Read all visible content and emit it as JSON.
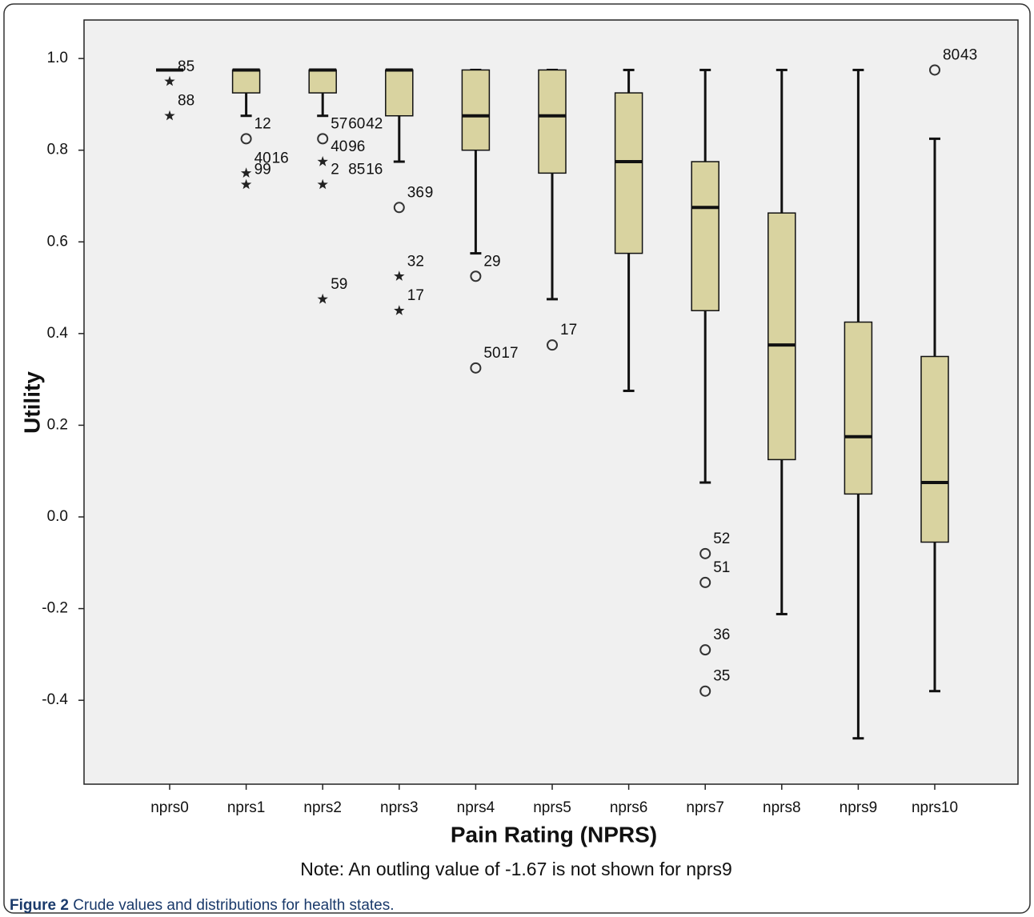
{
  "chart_data": {
    "type": "box",
    "x_label": "Pain Rating (NPRS)",
    "y_label": "Utility",
    "note": "Note: An outling value of -1.67 is not shown for nprs9",
    "caption_label": "Figure 2",
    "caption_text": "Crude values and distributions for health states.",
    "color": "#d9d3a0",
    "categories": [
      "nprs0",
      "nprs1",
      "nprs2",
      "nprs3",
      "nprs4",
      "nprs5",
      "nprs6",
      "nprs7",
      "nprs8",
      "nprs9",
      "nprs10"
    ],
    "boxes": [
      {
        "q1": 0.975,
        "median": 0.975,
        "q3": 0.975,
        "whisker_low": 0.975,
        "whisker_high": 0.975,
        "outliers": [
          {
            "value": 0.95,
            "marker": "star",
            "labels": [
              "85"
            ]
          },
          {
            "value": 0.875,
            "marker": "star",
            "labels": [
              "88"
            ]
          }
        ]
      },
      {
        "q1": 0.925,
        "median": 0.975,
        "q3": 0.975,
        "whisker_low": 0.875,
        "whisker_high": 0.975,
        "outliers": [
          {
            "value": 0.825,
            "marker": "circle",
            "labels": [
              "12"
            ]
          },
          {
            "value": 0.75,
            "marker": "star",
            "labels": [
              "40",
              "16"
            ]
          },
          {
            "value": 0.725,
            "marker": "star",
            "labels": [
              "99"
            ]
          }
        ]
      },
      {
        "q1": 0.925,
        "median": 0.975,
        "q3": 0.975,
        "whisker_low": 0.875,
        "whisker_high": 0.975,
        "outliers": [
          {
            "value": 0.825,
            "marker": "circle",
            "labels": [
              "57",
              "60",
              "42"
            ]
          },
          {
            "value": 0.775,
            "marker": "star",
            "labels": [
              "40",
              "96"
            ]
          },
          {
            "value": 0.725,
            "marker": "star",
            "labels": [
              "2",
              "85",
              "16"
            ]
          },
          {
            "value": 0.475,
            "marker": "star",
            "labels": [
              "59"
            ]
          }
        ]
      },
      {
        "q1": 0.875,
        "median": 0.975,
        "q3": 0.975,
        "whisker_low": 0.775,
        "whisker_high": 0.975,
        "outliers": [
          {
            "value": 0.675,
            "marker": "circle",
            "labels": [
              "36",
              "9"
            ]
          },
          {
            "value": 0.525,
            "marker": "star",
            "labels": [
              "32"
            ]
          },
          {
            "value": 0.45,
            "marker": "star",
            "labels": [
              "17"
            ]
          }
        ]
      },
      {
        "q1": 0.8,
        "median": 0.875,
        "q3": 0.975,
        "whisker_low": 0.575,
        "whisker_high": 0.975,
        "outliers": [
          {
            "value": 0.525,
            "marker": "circle",
            "labels": [
              "29"
            ]
          },
          {
            "value": 0.325,
            "marker": "circle",
            "labels": [
              "50",
              "17"
            ]
          }
        ]
      },
      {
        "q1": 0.75,
        "median": 0.875,
        "q3": 0.975,
        "whisker_low": 0.475,
        "whisker_high": 0.975,
        "outliers": [
          {
            "value": 0.375,
            "marker": "circle",
            "labels": [
              "17"
            ]
          }
        ]
      },
      {
        "q1": 0.575,
        "median": 0.775,
        "q3": 0.925,
        "whisker_low": 0.275,
        "whisker_high": 0.975,
        "outliers": []
      },
      {
        "q1": 0.45,
        "median": 0.675,
        "q3": 0.775,
        "whisker_low": 0.075,
        "whisker_high": 0.975,
        "outliers": [
          {
            "value": -0.08,
            "marker": "circle",
            "labels": [
              "52"
            ]
          },
          {
            "value": -0.143,
            "marker": "circle",
            "labels": [
              "51"
            ]
          },
          {
            "value": -0.29,
            "marker": "circle",
            "labels": [
              "36"
            ]
          },
          {
            "value": -0.38,
            "marker": "circle",
            "labels": [
              "35"
            ]
          }
        ]
      },
      {
        "q1": 0.125,
        "median": 0.375,
        "q3": 0.663,
        "whisker_low": -0.212,
        "whisker_high": 0.975,
        "outliers": []
      },
      {
        "q1": 0.05,
        "median": 0.175,
        "q3": 0.425,
        "whisker_low": -0.483,
        "whisker_high": 0.975,
        "outliers": []
      },
      {
        "q1": -0.055,
        "median": 0.075,
        "q3": 0.35,
        "whisker_low": -0.38,
        "whisker_high": 0.825,
        "outliers": [
          {
            "value": 0.975,
            "marker": "circle",
            "labels": [
              "80",
              "43"
            ]
          }
        ]
      }
    ],
    "ylim": [
      -0.583,
      1.084
    ],
    "yticks": [
      -0.4,
      -0.2,
      {
        "value": 0,
        "label": "0.0"
      },
      0.2,
      0.4,
      0.6,
      0.8,
      {
        "value": 1,
        "label": "1.0"
      }
    ]
  }
}
